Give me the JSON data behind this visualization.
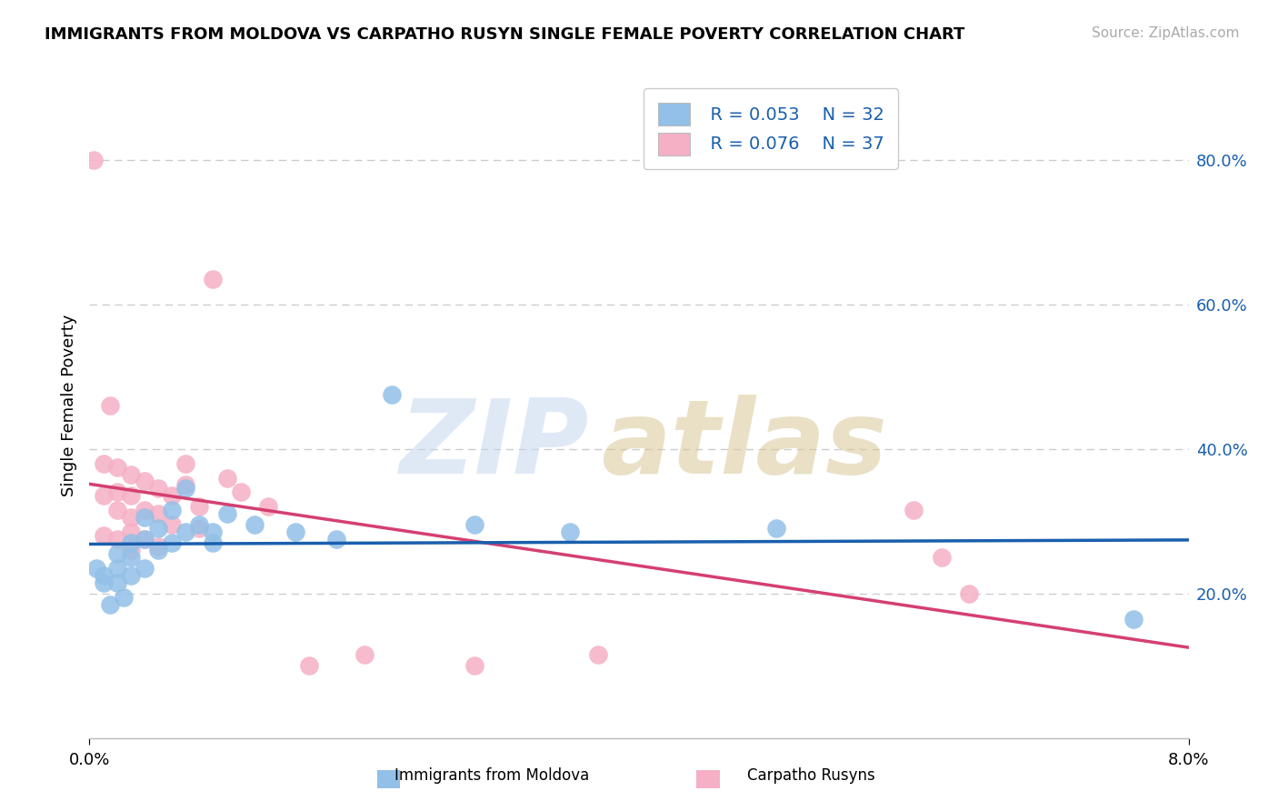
{
  "title": "IMMIGRANTS FROM MOLDOVA VS CARPATHO RUSYN SINGLE FEMALE POVERTY CORRELATION CHART",
  "source": "Source: ZipAtlas.com",
  "ylabel": "Single Female Poverty",
  "legend_labels": [
    "Immigrants from Moldova",
    "Carpatho Rusyns"
  ],
  "legend_R": [
    "R = 0.053",
    "N = 32"
  ],
  "legend_N": [
    "R = 0.076",
    "N = 37"
  ],
  "ytick_labels": [
    "20.0%",
    "40.0%",
    "60.0%",
    "80.0%"
  ],
  "ytick_values": [
    0.2,
    0.4,
    0.6,
    0.8
  ],
  "xtick_labels": [
    "0.0%",
    "8.0%"
  ],
  "xlim": [
    0.0,
    0.08
  ],
  "ylim": [
    0.0,
    0.92
  ],
  "blue_color": "#92c0e8",
  "pink_color": "#f5b0c5",
  "blue_line_color": "#1a5fad",
  "pink_line_color": "#d44070",
  "watermark_zip_color": "#c5d8f0",
  "watermark_atlas_color": "#d8c898",
  "blue_scatter_x": [
    0.0005,
    0.001,
    0.001,
    0.0015,
    0.002,
    0.002,
    0.002,
    0.0025,
    0.003,
    0.003,
    0.003,
    0.004,
    0.004,
    0.004,
    0.005,
    0.005,
    0.006,
    0.006,
    0.007,
    0.007,
    0.008,
    0.009,
    0.009,
    0.01,
    0.012,
    0.015,
    0.018,
    0.022,
    0.028,
    0.035,
    0.05,
    0.076
  ],
  "blue_scatter_y": [
    0.235,
    0.225,
    0.215,
    0.185,
    0.255,
    0.235,
    0.215,
    0.195,
    0.27,
    0.25,
    0.225,
    0.305,
    0.275,
    0.235,
    0.29,
    0.26,
    0.315,
    0.27,
    0.345,
    0.285,
    0.295,
    0.27,
    0.285,
    0.31,
    0.295,
    0.285,
    0.275,
    0.475,
    0.295,
    0.285,
    0.29,
    0.165
  ],
  "pink_scatter_x": [
    0.0003,
    0.001,
    0.001,
    0.001,
    0.0015,
    0.002,
    0.002,
    0.002,
    0.002,
    0.003,
    0.003,
    0.003,
    0.003,
    0.003,
    0.004,
    0.004,
    0.004,
    0.005,
    0.005,
    0.005,
    0.006,
    0.006,
    0.007,
    0.007,
    0.008,
    0.008,
    0.009,
    0.01,
    0.011,
    0.013,
    0.016,
    0.02,
    0.028,
    0.037,
    0.06,
    0.062,
    0.064
  ],
  "pink_scatter_y": [
    0.8,
    0.38,
    0.335,
    0.28,
    0.46,
    0.375,
    0.34,
    0.315,
    0.275,
    0.365,
    0.335,
    0.305,
    0.285,
    0.26,
    0.355,
    0.315,
    0.275,
    0.345,
    0.31,
    0.265,
    0.335,
    0.295,
    0.38,
    0.35,
    0.32,
    0.29,
    0.635,
    0.36,
    0.34,
    0.32,
    0.1,
    0.115,
    0.1,
    0.115,
    0.315,
    0.25,
    0.2
  ]
}
